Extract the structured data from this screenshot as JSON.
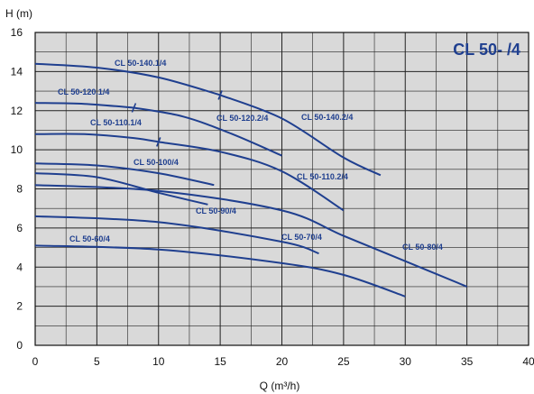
{
  "chart_data": {
    "type": "line",
    "title": "CL 50- /4",
    "xlabel": "Q (m³/h)",
    "ylabel": "H (m)",
    "xlim": [
      0,
      40
    ],
    "ylim": [
      0,
      16
    ],
    "xticks": [
      0,
      5,
      10,
      15,
      20,
      25,
      30,
      35,
      40
    ],
    "yticks": [
      0,
      2,
      4,
      6,
      8,
      10,
      12,
      14,
      16
    ],
    "grid": true,
    "series": [
      {
        "name": "CL 50-140.1/4",
        "points": [
          [
            0,
            14.4
          ],
          [
            5,
            14.2
          ],
          [
            10,
            13.7
          ],
          [
            15,
            12.8
          ]
        ]
      },
      {
        "name": "CL 50-140.2/4",
        "points": [
          [
            15,
            12.8
          ],
          [
            20,
            11.6
          ],
          [
            25,
            9.6
          ],
          [
            28,
            8.7
          ]
        ]
      },
      {
        "name": "CL 50-120.1/4",
        "points": [
          [
            0,
            12.4
          ],
          [
            4,
            12.35
          ],
          [
            8,
            12.15
          ]
        ]
      },
      {
        "name": "CL 50-120.2/4",
        "points": [
          [
            8,
            12.15
          ],
          [
            12,
            11.7
          ],
          [
            16,
            10.8
          ],
          [
            20,
            9.7
          ]
        ]
      },
      {
        "name": "CL 50-110.1/4",
        "points": [
          [
            0,
            10.8
          ],
          [
            4,
            10.8
          ],
          [
            8,
            10.6
          ],
          [
            10,
            10.4
          ]
        ]
      },
      {
        "name": "CL 50-110.2/4",
        "points": [
          [
            10,
            10.4
          ],
          [
            15,
            9.9
          ],
          [
            20,
            8.9
          ],
          [
            25,
            6.9
          ]
        ]
      },
      {
        "name": "CL 50-100/4",
        "points": [
          [
            0,
            9.3
          ],
          [
            5,
            9.2
          ],
          [
            10,
            8.8
          ],
          [
            14.5,
            8.2
          ]
        ]
      },
      {
        "name": "CL 50-90/4",
        "points": [
          [
            0,
            8.8
          ],
          [
            5,
            8.6
          ],
          [
            10,
            7.8
          ],
          [
            14,
            7.2
          ]
        ]
      },
      {
        "name": "CL 50-80/4",
        "points": [
          [
            0,
            8.2
          ],
          [
            10,
            7.9
          ],
          [
            20,
            6.9
          ],
          [
            25,
            5.6
          ],
          [
            30,
            4.3
          ],
          [
            35,
            3.0
          ]
        ]
      },
      {
        "name": "CL 50-70/4",
        "points": [
          [
            0,
            6.6
          ],
          [
            10,
            6.3
          ],
          [
            20,
            5.3
          ],
          [
            23,
            4.7
          ]
        ]
      },
      {
        "name": "CL 50-60/4",
        "points": [
          [
            0,
            5.1
          ],
          [
            10,
            4.9
          ],
          [
            20,
            4.2
          ],
          [
            25,
            3.6
          ],
          [
            30,
            2.5
          ]
        ]
      }
    ],
    "colors": {
      "curve": "#1f3f8f",
      "title": "#1f3f8f",
      "grid": "#222222",
      "plot_bg": "#d9d9d9"
    }
  }
}
